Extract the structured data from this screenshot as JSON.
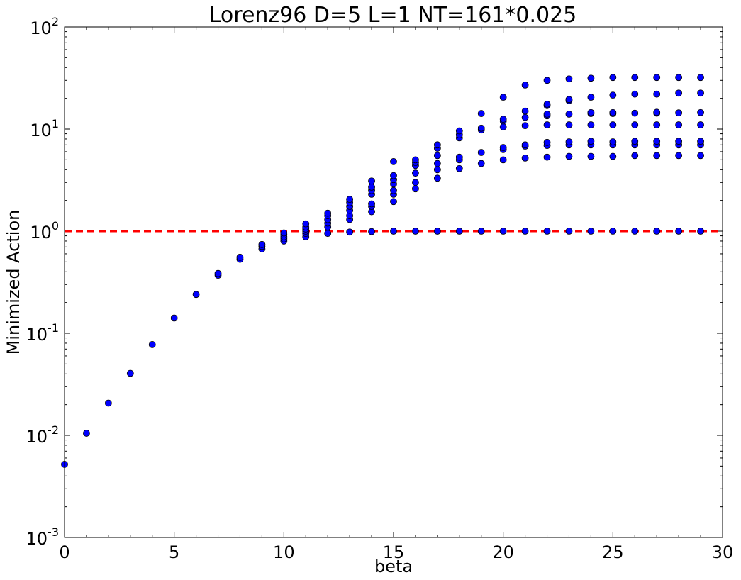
{
  "chart_data": {
    "type": "scatter",
    "title": "Lorenz96 D=5 L=1 NT=161*0.025",
    "xlabel": "beta",
    "ylabel": "Minimized Action",
    "xlim": [
      0,
      30
    ],
    "ylim": [
      0.001,
      100
    ],
    "yscale": "log",
    "grid": false,
    "x_ticks": [
      0,
      5,
      10,
      15,
      20,
      25,
      30
    ],
    "x_tick_labels": [
      "0",
      "5",
      "10",
      "15",
      "20",
      "25",
      "30"
    ],
    "y_ticks": [
      0.001,
      0.01,
      0.1,
      1,
      10,
      100
    ],
    "y_tick_labels": [
      {
        "base": "10",
        "exp": "-3"
      },
      {
        "base": "10",
        "exp": "-2"
      },
      {
        "base": "10",
        "exp": "-1"
      },
      {
        "base": "10",
        "exp": "0"
      },
      {
        "base": "10",
        "exp": "1"
      },
      {
        "base": "10",
        "exp": "2"
      }
    ],
    "reference_line": {
      "y": 1,
      "style": "dashed",
      "color": "#ff0000"
    },
    "marker_color": "#0000ff",
    "series": [
      {
        "points": [
          [
            0,
            0.0052
          ],
          [
            1,
            0.0105
          ],
          [
            2,
            0.0207
          ],
          [
            3,
            0.0405
          ],
          [
            4,
            0.0775
          ],
          [
            5,
            0.141
          ],
          [
            6,
            0.24
          ],
          [
            7,
            0.37
          ],
          [
            7,
            0.385
          ],
          [
            8,
            0.53
          ],
          [
            8,
            0.555
          ],
          [
            9,
            0.67
          ],
          [
            9,
            0.71
          ],
          [
            9,
            0.74
          ],
          [
            10,
            0.8
          ],
          [
            10,
            0.84
          ],
          [
            10,
            0.88
          ],
          [
            10,
            0.92
          ],
          [
            10,
            0.96
          ],
          [
            11,
            0.88
          ],
          [
            11,
            0.95
          ],
          [
            11,
            1.0
          ],
          [
            11,
            1.05
          ],
          [
            11,
            1.1
          ],
          [
            11,
            1.18
          ],
          [
            12,
            0.95
          ],
          [
            12,
            1.1
          ],
          [
            12,
            1.2
          ],
          [
            12,
            1.3
          ],
          [
            12,
            1.42
          ],
          [
            12,
            1.5
          ],
          [
            13,
            0.98
          ],
          [
            13,
            1.3
          ],
          [
            13,
            1.42
          ],
          [
            13,
            1.6
          ],
          [
            13,
            1.75
          ],
          [
            13,
            1.9
          ],
          [
            13,
            2.05
          ],
          [
            14,
            0.99
          ],
          [
            14,
            1.55
          ],
          [
            14,
            1.75
          ],
          [
            14,
            1.85
          ],
          [
            14,
            2.3
          ],
          [
            14,
            2.5
          ],
          [
            14,
            2.7
          ],
          [
            14,
            3.1
          ],
          [
            15,
            1.0
          ],
          [
            15,
            1.95
          ],
          [
            15,
            2.3
          ],
          [
            15,
            2.5
          ],
          [
            15,
            2.9
          ],
          [
            15,
            3.2
          ],
          [
            15,
            3.5
          ],
          [
            15,
            4.8
          ],
          [
            16,
            1.0
          ],
          [
            16,
            2.6
          ],
          [
            16,
            3.0
          ],
          [
            16,
            3.7
          ],
          [
            16,
            4.4
          ],
          [
            16,
            4.7
          ],
          [
            16,
            5.0
          ],
          [
            17,
            1.0
          ],
          [
            17,
            3.3
          ],
          [
            17,
            4.0
          ],
          [
            17,
            4.6
          ],
          [
            17,
            5.5
          ],
          [
            17,
            6.5
          ],
          [
            17,
            7.0
          ],
          [
            18,
            1.0
          ],
          [
            18,
            4.1
          ],
          [
            18,
            5.0
          ],
          [
            18,
            5.3
          ],
          [
            18,
            8.2
          ],
          [
            18,
            8.8
          ],
          [
            18,
            9.6
          ],
          [
            19,
            1.0
          ],
          [
            19,
            4.6
          ],
          [
            19,
            5.9
          ],
          [
            19,
            9.8
          ],
          [
            19,
            10.2
          ],
          [
            19,
            14.2
          ],
          [
            20,
            1.0
          ],
          [
            20,
            5.0
          ],
          [
            20,
            6.3
          ],
          [
            20,
            6.6
          ],
          [
            20,
            10.5
          ],
          [
            20,
            12.0
          ],
          [
            20,
            12.5
          ],
          [
            20,
            20.5
          ],
          [
            21,
            1.0
          ],
          [
            21,
            5.2
          ],
          [
            21,
            6.8
          ],
          [
            21,
            7.0
          ],
          [
            21,
            10.8
          ],
          [
            21,
            13.0
          ],
          [
            21,
            15.0
          ],
          [
            21,
            27.0
          ],
          [
            22,
            1.0
          ],
          [
            22,
            5.3
          ],
          [
            22,
            6.9
          ],
          [
            22,
            7.4
          ],
          [
            22,
            11.0
          ],
          [
            22,
            13.5
          ],
          [
            22,
            14.0
          ],
          [
            22,
            17.0
          ],
          [
            22,
            17.5
          ],
          [
            22,
            30.0
          ],
          [
            23,
            1.0
          ],
          [
            23,
            5.4
          ],
          [
            23,
            7.0
          ],
          [
            23,
            7.5
          ],
          [
            23,
            11.0
          ],
          [
            23,
            14.0
          ],
          [
            23,
            19.0
          ],
          [
            23,
            19.5
          ],
          [
            23,
            31.0
          ],
          [
            24,
            1.0
          ],
          [
            24,
            5.4
          ],
          [
            24,
            7.0
          ],
          [
            24,
            7.6
          ],
          [
            24,
            11.0
          ],
          [
            24,
            14.2
          ],
          [
            24,
            14.5
          ],
          [
            24,
            20.5
          ],
          [
            24,
            31.5
          ],
          [
            25,
            1.0
          ],
          [
            25,
            5.4
          ],
          [
            25,
            7.0
          ],
          [
            25,
            7.5
          ],
          [
            25,
            11.0
          ],
          [
            25,
            14.2
          ],
          [
            25,
            14.5
          ],
          [
            25,
            21.5
          ],
          [
            25,
            32.0
          ],
          [
            26,
            1.0
          ],
          [
            26,
            5.5
          ],
          [
            26,
            7.0
          ],
          [
            26,
            7.6
          ],
          [
            26,
            11.0
          ],
          [
            26,
            14.3
          ],
          [
            26,
            22.0
          ],
          [
            26,
            32.0
          ],
          [
            27,
            1.0
          ],
          [
            27,
            5.5
          ],
          [
            27,
            7.0
          ],
          [
            27,
            7.6
          ],
          [
            27,
            11.0
          ],
          [
            27,
            14.3
          ],
          [
            27,
            14.6
          ],
          [
            27,
            22.0
          ],
          [
            27,
            32.0
          ],
          [
            28,
            1.0
          ],
          [
            28,
            5.5
          ],
          [
            28,
            7.0
          ],
          [
            28,
            7.6
          ],
          [
            28,
            11.0
          ],
          [
            28,
            14.4
          ],
          [
            28,
            22.5
          ],
          [
            28,
            32.0
          ],
          [
            29,
            1.0
          ],
          [
            29,
            5.5
          ],
          [
            29,
            7.0
          ],
          [
            29,
            7.6
          ],
          [
            29,
            11.0
          ],
          [
            29,
            14.5
          ],
          [
            29,
            22.5
          ],
          [
            29,
            32.0
          ]
        ]
      }
    ]
  }
}
